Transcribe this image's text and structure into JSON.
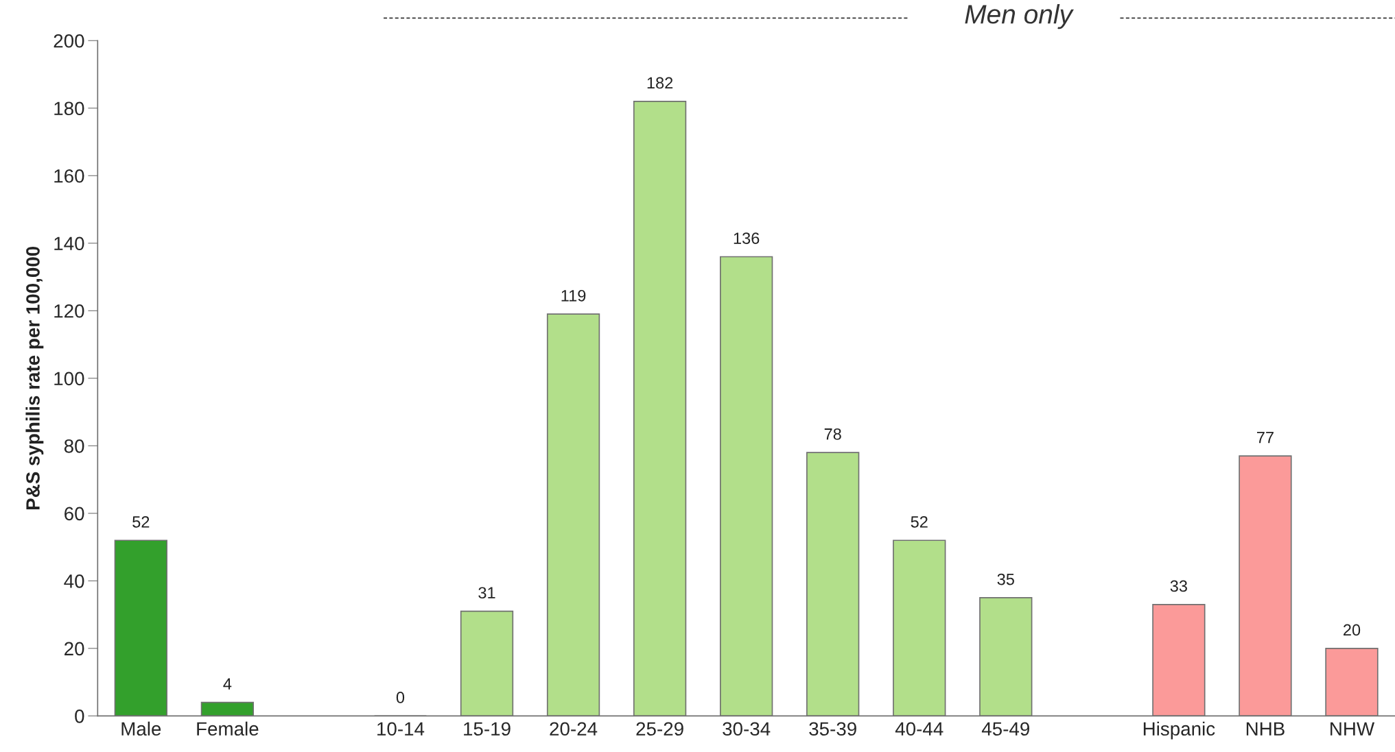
{
  "chart_data": {
    "type": "bar",
    "ylabel": "P&S syphilis rate per 100,000",
    "categories": [
      "Male",
      "Female",
      null,
      "10-14",
      "15-19",
      "20-24",
      "25-29",
      "30-34",
      "35-39",
      "40-44",
      "45-49",
      null,
      "Hispanic",
      "NHB",
      "NHW"
    ],
    "values": [
      52,
      4,
      null,
      0,
      31,
      119,
      182,
      136,
      78,
      52,
      35,
      null,
      33,
      77,
      20
    ],
    "colors": [
      "#33a02c",
      "#33a02c",
      null,
      "#b2df8a",
      "#b2df8a",
      "#b2df8a",
      "#b2df8a",
      "#b2df8a",
      "#b2df8a",
      "#b2df8a",
      "#b2df8a",
      null,
      "#fb9a99",
      "#fb9a99",
      "#fb9a99"
    ],
    "ylim": [
      0,
      200
    ],
    "yticks": [
      0,
      20,
      40,
      60,
      80,
      100,
      120,
      140,
      160,
      180,
      200
    ],
    "data_labels": true,
    "grid": false,
    "legend": false,
    "annotations": [
      "Men only"
    ]
  }
}
